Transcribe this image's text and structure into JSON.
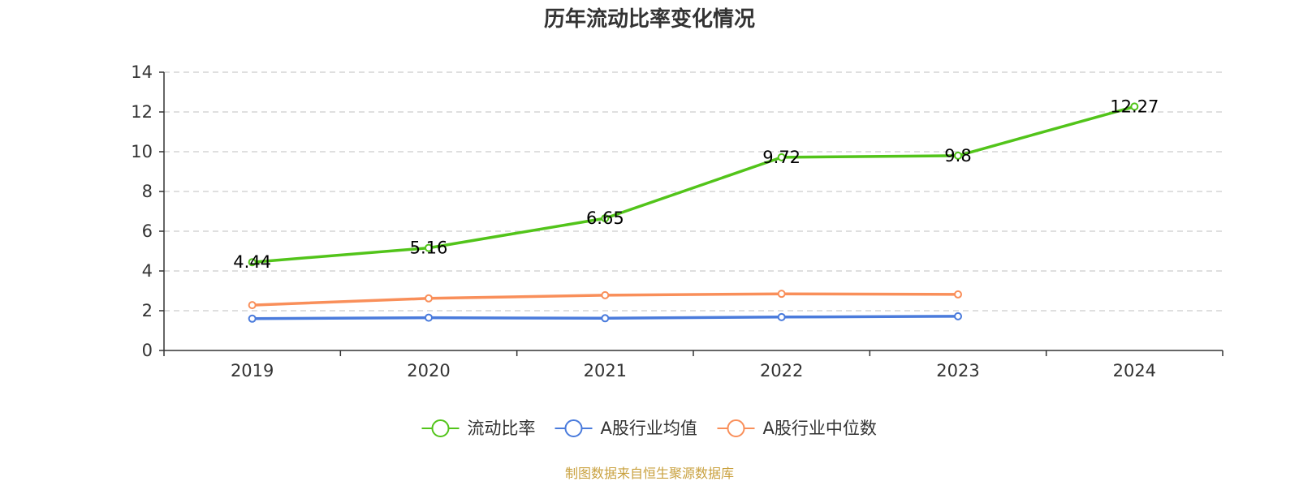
{
  "chart_data": {
    "type": "line",
    "title": "历年流动比率变化情况",
    "categories": [
      "2019",
      "2020",
      "2021",
      "2022",
      "2023",
      "2024"
    ],
    "ylim": [
      0,
      14
    ],
    "y_ticks": [
      0,
      2,
      4,
      6,
      8,
      10,
      12,
      14
    ],
    "grid": true,
    "legend_position": "bottom",
    "series": [
      {
        "name": "流动比率",
        "color": "#52c41a",
        "values": [
          4.44,
          5.16,
          6.65,
          9.72,
          9.8,
          12.27
        ],
        "labels": [
          "4.44",
          "5.16",
          "6.65",
          "9.72",
          "9.8",
          "12.27"
        ]
      },
      {
        "name": "A股行业均值",
        "color": "#4a7bdc",
        "values": [
          1.6,
          1.65,
          1.62,
          1.68,
          1.72,
          null
        ]
      },
      {
        "name": "A股行业中位数",
        "color": "#f98f5a",
        "values": [
          2.28,
          2.62,
          2.78,
          2.85,
          2.82,
          null
        ]
      }
    ]
  },
  "footer": {
    "text": "制图数据来自恒生聚源数据库",
    "color": "#c9a13f"
  }
}
